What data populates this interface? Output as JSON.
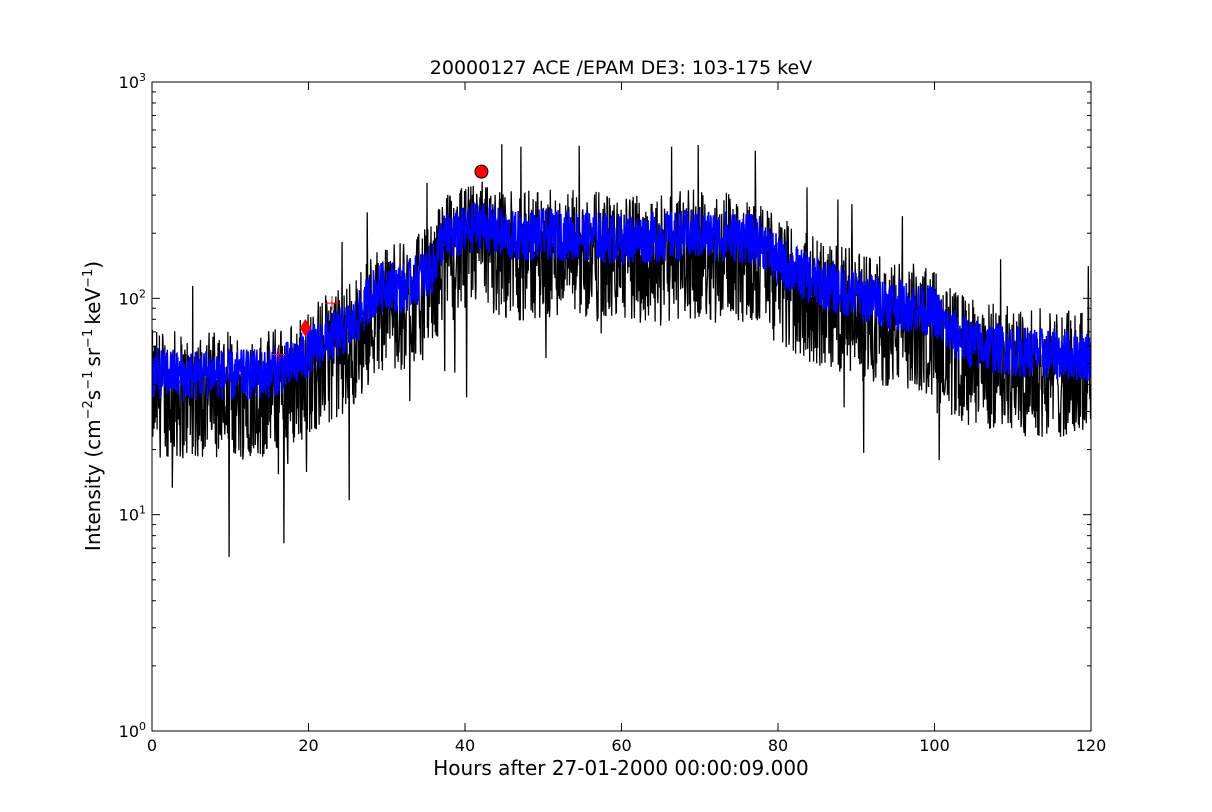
{
  "chart_data": {
    "type": "line",
    "title": "20000127 ACE /EPAM DE3: 103-175 keV",
    "xlabel": "Hours after 27-01-2000 00:00:09.000",
    "ylabel_parts": {
      "base": "Intensity (cm",
      "exp1": "−2",
      "s": "s",
      "exp2": "−1",
      "sr": "sr",
      "exp3": "−1",
      "kev": "keV",
      "exp4": "−1",
      "close": ")"
    },
    "xlim": [
      0,
      120
    ],
    "ylim": [
      1,
      1000
    ],
    "yscale": "log",
    "grid": false,
    "x_ticks": [
      {
        "value": 0,
        "label": "0"
      },
      {
        "value": 20,
        "label": "20"
      },
      {
        "value": 40,
        "label": "40"
      },
      {
        "value": 60,
        "label": "60"
      },
      {
        "value": 80,
        "label": "80"
      },
      {
        "value": 100,
        "label": "100"
      },
      {
        "value": 120,
        "label": "120"
      }
    ],
    "y_ticks": [
      {
        "value": 1,
        "base": "10",
        "exp": "0"
      },
      {
        "value": 10,
        "base": "10",
        "exp": "1"
      },
      {
        "value": 100,
        "base": "10",
        "exp": "2"
      },
      {
        "value": 1000,
        "base": "10",
        "exp": "3"
      }
    ],
    "series": [
      {
        "color": "#000000",
        "x": [
          0,
          2,
          4,
          6,
          8,
          10,
          12,
          14,
          16,
          18,
          20,
          22,
          24,
          26,
          28,
          30,
          32,
          34,
          36,
          37,
          40,
          42,
          44,
          46,
          50,
          55,
          60,
          65,
          70,
          75,
          78,
          80,
          85,
          90,
          95,
          100,
          102,
          105,
          110,
          115,
          120
        ],
        "y": [
          45,
          46,
          44,
          45,
          46,
          44,
          45,
          45,
          47,
          50,
          57,
          65,
          70,
          78,
          105,
          118,
          112,
          125,
          140,
          190,
          205,
          225,
          205,
          195,
          200,
          198,
          190,
          195,
          200,
          195,
          185,
          150,
          120,
          105,
          95,
          88,
          70,
          62,
          58,
          56,
          55
        ],
        "noise_low": 0.4,
        "noise_high": 1.6
      },
      {
        "color": "#0000ff",
        "x": [
          0,
          2,
          4,
          6,
          8,
          10,
          12,
          14,
          16,
          18,
          20,
          22,
          24,
          26,
          28,
          30,
          32,
          34,
          36,
          37,
          40,
          42,
          44,
          46,
          50,
          55,
          60,
          65,
          70,
          75,
          78,
          80,
          85,
          90,
          95,
          100,
          102,
          105,
          110,
          115,
          120
        ],
        "y": [
          45,
          46,
          44,
          45,
          46,
          44,
          45,
          45,
          47,
          50,
          57,
          65,
          70,
          78,
          105,
          118,
          112,
          125,
          140,
          190,
          205,
          225,
          205,
          195,
          200,
          198,
          190,
          195,
          200,
          195,
          185,
          150,
          120,
          105,
          95,
          88,
          70,
          62,
          58,
          56,
          55
        ],
        "noise_low": 0.75,
        "noise_high": 1.3
      }
    ],
    "markers": [
      {
        "shape": "plus",
        "x": 16.2,
        "y": 55,
        "color": "#ff0000"
      },
      {
        "shape": "diamond",
        "x": 19.6,
        "y": 73,
        "color": "#ff0000"
      },
      {
        "shape": "plus",
        "x": 23.0,
        "y": 95,
        "color": "#ff0000"
      },
      {
        "shape": "circle",
        "x": 42.1,
        "y": 385,
        "color": "#ff0000"
      }
    ]
  }
}
